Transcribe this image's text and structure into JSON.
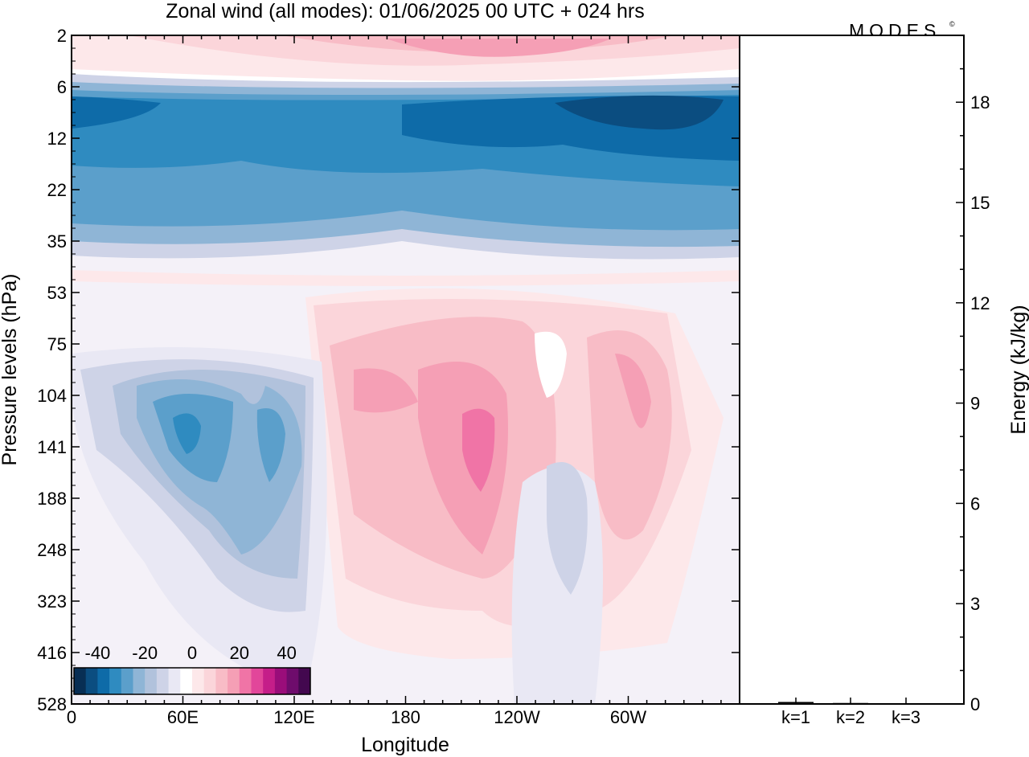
{
  "title": "Zonal wind (all modes):  01/06/2025  00 UTC  + 024 hrs",
  "brand": "MODES",
  "brand_mark": "©",
  "chart_data": [
    {
      "type": "heatmap",
      "title": "Zonal wind (all modes):  01/06/2025  00 UTC  + 024 hrs",
      "xlabel": "Longitude",
      "ylabel": "Pressure levels (hPa)",
      "x_ticks": [
        "0",
        "60E",
        "120E",
        "180",
        "120W",
        "60W"
      ],
      "x_tick_degrees": [
        0,
        60,
        120,
        180,
        240,
        300
      ],
      "xlim": [
        0,
        360
      ],
      "y_ticks": [
        "2",
        "6",
        "12",
        "22",
        "35",
        "53",
        "75",
        "104",
        "141",
        "188",
        "248",
        "323",
        "416",
        "528"
      ],
      "colorbar": {
        "tick_labels": [
          "-40",
          "-20",
          "0",
          "20",
          "40"
        ],
        "tick_values": [
          -40,
          -20,
          0,
          20,
          40
        ],
        "levels": [
          -45,
          -40,
          -35,
          -30,
          -25,
          -20,
          -15,
          -10,
          -5,
          0,
          5,
          10,
          15,
          20,
          25,
          30,
          35,
          40,
          45
        ],
        "colors": [
          "#082e54",
          "#0b4d80",
          "#0e6ba8",
          "#2f8bc0",
          "#5b9fcb",
          "#8fb5d6",
          "#b1c2dc",
          "#ced3e7",
          "#e9e8f4",
          "#ffffff",
          "#fde8ea",
          "#fbd5da",
          "#f8bcc6",
          "#f59fb5",
          "#f074a6",
          "#e2469a",
          "#c51e89",
          "#9a0d7a",
          "#6e0c6c",
          "#43084f"
        ]
      },
      "features": [
        {
          "lon": 180,
          "level": "8",
          "value": -27,
          "note": "easterly band across all longitudes"
        },
        {
          "lon": 290,
          "level": "8",
          "value": -40,
          "note": "strongest easterlies"
        },
        {
          "lon": 200,
          "level": "2",
          "value": 20,
          "note": "westerlies at top level"
        },
        {
          "lon": 40,
          "level": "141",
          "value": -25,
          "note": "easterly core"
        },
        {
          "lon": 100,
          "level": "141",
          "value": -22,
          "note": "easterly core"
        },
        {
          "lon": 200,
          "level": "141",
          "value": 28,
          "note": "westerly core"
        },
        {
          "lon": 155,
          "level": "104",
          "value": 18,
          "note": "westerly core"
        },
        {
          "lon": 297,
          "level": "104",
          "value": 18,
          "note": "westerly core"
        }
      ]
    },
    {
      "type": "bar",
      "categories": [
        "k=1",
        "k=2",
        "k=3"
      ],
      "values": [
        0.06,
        0.03,
        0.02
      ],
      "ylabel": "Energy (kJ/kg)",
      "ylim": [
        0,
        20
      ],
      "y_ticks": [
        0,
        3,
        6,
        9,
        12,
        15,
        18
      ]
    }
  ]
}
